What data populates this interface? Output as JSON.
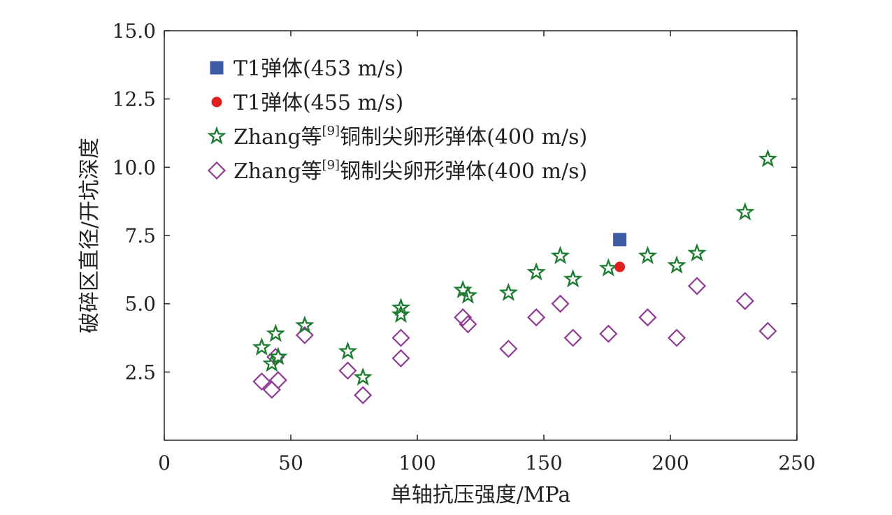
{
  "chart_data": {
    "type": "scatter",
    "title": "",
    "xlabel": "单轴抗压强度/MPa",
    "ylabel": "破碎区直径/开坑深度",
    "xlim": [
      0,
      250
    ],
    "ylim": [
      0,
      15
    ],
    "x_ticks": [
      0,
      50,
      100,
      150,
      200,
      250
    ],
    "x_tick_labels": [
      "0",
      "50",
      "100",
      "150",
      "200",
      "250"
    ],
    "y_ticks": [
      2.5,
      5.0,
      7.5,
      10.0,
      12.5,
      15.0
    ],
    "y_tick_labels": [
      "2.5",
      "5.0",
      "7.5",
      "10.0",
      "12.5",
      "15.0"
    ],
    "grid": false,
    "legend_position": "top-left",
    "series": [
      {
        "name": "T1弹体(453 m/s)",
        "legend_prefix": "T1弹体(453 m/s)",
        "legend_sup": "",
        "legend_suffix": "",
        "marker": "square",
        "color": "#3c5aa6",
        "filled": true,
        "points": [
          [
            180,
            7.35
          ]
        ]
      },
      {
        "name": "T1弹体(455 m/s)",
        "legend_prefix": "T1弹体(455 m/s)",
        "legend_sup": "",
        "legend_suffix": "",
        "marker": "circle",
        "color": "#e02020",
        "filled": true,
        "points": [
          [
            180,
            6.35
          ]
        ]
      },
      {
        "name": "Zhang等[9]铜制尖卵形弹体(400 m/s)",
        "legend_prefix": "Zhang等",
        "legend_sup": "[9]",
        "legend_suffix": "铜制尖卵形弹体(400 m/s)",
        "marker": "star",
        "color": "#1e7d32",
        "filled": false,
        "points": [
          [
            38.5,
            3.4
          ],
          [
            42.5,
            2.8
          ],
          [
            44,
            3.9
          ],
          [
            45,
            3.05
          ],
          [
            55.5,
            4.2
          ],
          [
            72.5,
            3.25
          ],
          [
            78.5,
            2.3
          ],
          [
            93.5,
            4.85
          ],
          [
            93.5,
            4.6
          ],
          [
            118,
            5.5
          ],
          [
            120,
            5.3
          ],
          [
            136,
            5.4
          ],
          [
            147,
            6.15
          ],
          [
            156.5,
            6.75
          ],
          [
            161.5,
            5.9
          ],
          [
            175.5,
            6.3
          ],
          [
            191,
            6.75
          ],
          [
            202.5,
            6.4
          ],
          [
            210.5,
            6.85
          ],
          [
            229.5,
            8.35
          ],
          [
            238.5,
            10.3
          ]
        ]
      },
      {
        "name": "Zhang等[9]钢制尖卵形弹体(400 m/s)",
        "legend_prefix": "Zhang等",
        "legend_sup": "[9]",
        "legend_suffix": "钢制尖卵形弹体(400 m/s)",
        "marker": "diamond",
        "color": "#8e3a96",
        "filled": false,
        "points": [
          [
            38.5,
            2.15
          ],
          [
            42.5,
            1.85
          ],
          [
            44,
            3.05
          ],
          [
            45,
            2.2
          ],
          [
            55.5,
            3.85
          ],
          [
            72.5,
            2.55
          ],
          [
            78.5,
            1.65
          ],
          [
            93.5,
            3.75
          ],
          [
            93.5,
            3.0
          ],
          [
            118,
            4.5
          ],
          [
            120,
            4.25
          ],
          [
            136,
            3.35
          ],
          [
            147,
            4.5
          ],
          [
            156.5,
            5.0
          ],
          [
            161.5,
            3.75
          ],
          [
            175.5,
            3.9
          ],
          [
            191,
            4.5
          ],
          [
            202.5,
            3.75
          ],
          [
            210.5,
            5.65
          ],
          [
            229.5,
            5.1
          ],
          [
            238.5,
            4.0
          ]
        ]
      }
    ]
  }
}
